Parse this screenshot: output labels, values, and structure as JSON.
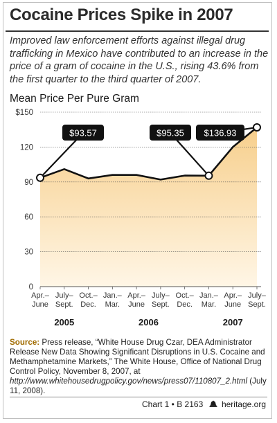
{
  "title": "Cocaine Prices Spike in 2007",
  "subtitle": "Improved law enforcement efforts against illegal drug trafficking in Mexico have contributed to an increase in the price of a gram of cocaine in the U.S., rising 43.6% from the first quarter to the third quarter of 2007.",
  "source": {
    "label": "Source:",
    "text": " Press release, “White House Drug Czar, DEA Administrator Release New Data Showing Significant Disruptions in U.S. Cocaine and Methamphetamine Markets,” The White House, Office of National Drug Control Policy, November 8, 2007, at ",
    "url": "http://www.whitehousedrugpolicy.gov/news/press07/110807_2.html",
    "tail": " (July 11, 2008)."
  },
  "footer": {
    "chart_id": "Chart 1 • B 2163",
    "site": "heritage.org"
  },
  "chart_data": {
    "type": "line",
    "ylabel": "Mean Price Per Pure Gram",
    "ylim": [
      0,
      150
    ],
    "yticks": [
      "$150",
      "120",
      "90",
      "60",
      "30",
      "0"
    ],
    "categories": [
      [
        "Apr.–",
        "June"
      ],
      [
        "July–",
        "Sept."
      ],
      [
        "Oct.–",
        "Dec."
      ],
      [
        "Jan.–",
        "Mar."
      ],
      [
        "Apr.–",
        "June"
      ],
      [
        "July–",
        "Sept."
      ],
      [
        "Oct.–",
        "Dec."
      ],
      [
        "Jan.–",
        "Mar."
      ],
      [
        "Apr.–",
        "June"
      ],
      [
        "July–",
        "Sept."
      ]
    ],
    "years": [
      {
        "label": "2005",
        "start": 0,
        "end": 2
      },
      {
        "label": "2006",
        "start": 3,
        "end": 6
      },
      {
        "label": "2007",
        "start": 7,
        "end": 9
      }
    ],
    "series": [
      {
        "values": [
          93.57,
          101,
          93,
          96,
          96,
          92,
          95.5,
          95.35,
          120,
          136.93
        ]
      }
    ],
    "annotations": [
      {
        "index": 0,
        "label": "$93.57"
      },
      {
        "index": 7,
        "label": "$95.35"
      },
      {
        "index": 9,
        "label": "$136.93"
      }
    ],
    "colors": {
      "line": "#111111",
      "fill_light": "#fde3b4",
      "fill_dark": "#f1dcc0",
      "band_2006": "#e9ddd0",
      "grid": "#555555",
      "label_bg": "#111111",
      "label_text": "#ffffff"
    }
  }
}
